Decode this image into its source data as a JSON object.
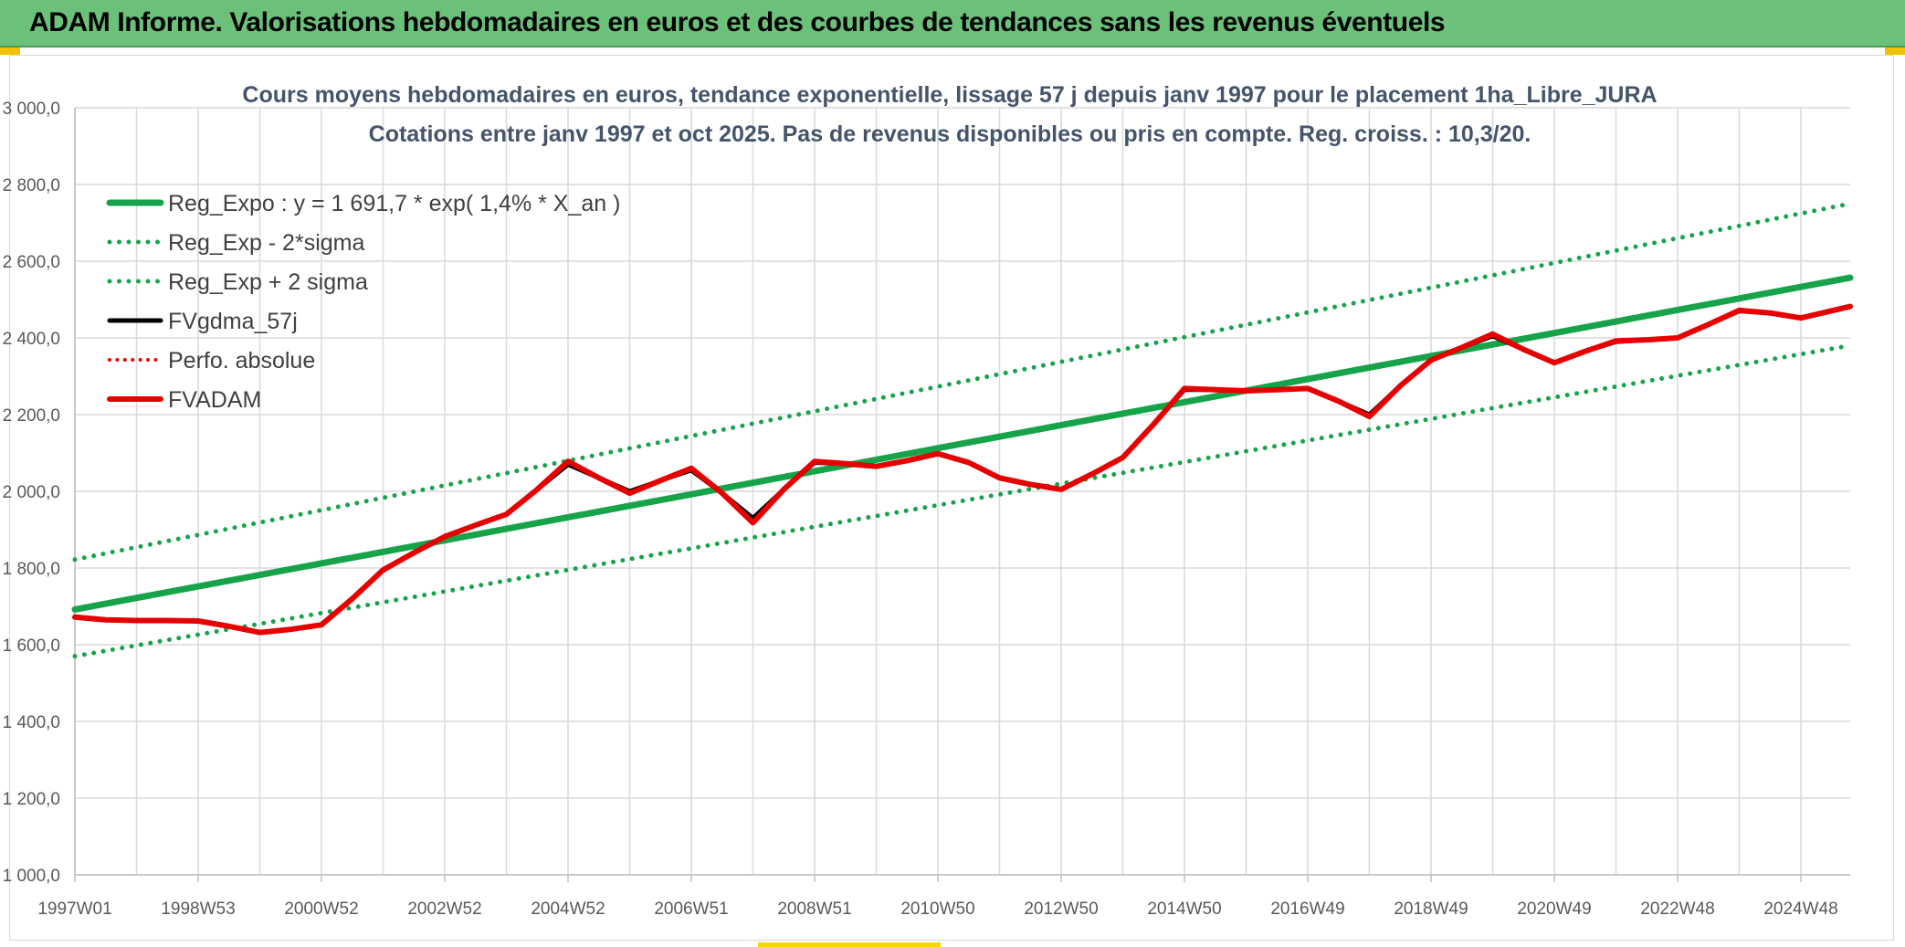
{
  "page": {
    "banner_title": "ADAM Informe. Valorisations hebdomadaires en euros et des courbes de tendances sans les revenus éventuels",
    "banner_color": "#6cc17a"
  },
  "chart_data": {
    "type": "line",
    "title": "Cours moyens hebdomadaires en euros, tendance exponentielle, lissage 57 j depuis janv 1997 pour le placement 1ha_Libre_JURA",
    "subtitle": "Cotations entre janv 1997 et oct 2025. Pas de revenus disponibles ou pris en compte. Reg. croiss. : 10,3/20.",
    "xlabel": "",
    "ylabel": "",
    "ylim": [
      1000,
      3000
    ],
    "yticks": [
      "1 000,0",
      "1 200,0",
      "1 400,0",
      "1 600,0",
      "1 800,0",
      "2 000,0",
      "2 200,0",
      "2 400,0",
      "2 600,0",
      "2 800,0",
      "3 000,0"
    ],
    "xlim": [
      1997.0,
      2025.8
    ],
    "xticks": [
      {
        "label": "1997W01",
        "x": 1997.0
      },
      {
        "label": "1998W53",
        "x": 1999.0
      },
      {
        "label": "2000W52",
        "x": 2001.0
      },
      {
        "label": "2002W52",
        "x": 2003.0
      },
      {
        "label": "2004W52",
        "x": 2005.0
      },
      {
        "label": "2006W51",
        "x": 2007.0
      },
      {
        "label": "2008W51",
        "x": 2009.0
      },
      {
        "label": "2010W50",
        "x": 2011.0
      },
      {
        "label": "2012W50",
        "x": 2013.0
      },
      {
        "label": "2014W50",
        "x": 2015.0
      },
      {
        "label": "2016W49",
        "x": 2017.0
      },
      {
        "label": "2018W49",
        "x": 2019.0
      },
      {
        "label": "2020W49",
        "x": 2021.0
      },
      {
        "label": "2022W48",
        "x": 2023.0
      },
      {
        "label": "2024W48",
        "x": 2025.0
      }
    ],
    "grid": true,
    "legend_position": "top-left",
    "series": [
      {
        "name": "Reg_Expo : y = 1 691,7 * exp( 1,4% *  X_an )",
        "color": "#17a34a",
        "style": "solid",
        "width": 7,
        "x": [
          1997.0,
          2025.8
        ],
        "values": [
          1692,
          2557
        ]
      },
      {
        "name": "Reg_Exp - 2*sigma",
        "color": "#17a34a",
        "style": "dotted",
        "width": 5,
        "x": [
          1997.0,
          2025.8
        ],
        "values": [
          1570,
          2380
        ]
      },
      {
        "name": "Reg_Exp + 2 sigma",
        "color": "#17a34a",
        "style": "dotted",
        "width": 5,
        "x": [
          1997.0,
          2025.8
        ],
        "values": [
          1822,
          2750
        ]
      },
      {
        "name": "FVgdma_57j",
        "color": "#000000",
        "style": "solid",
        "width": 5,
        "x": [
          1997.0,
          1997.5,
          1998.0,
          1998.5,
          1999.0,
          1999.5,
          2000.0,
          2000.5,
          2001.0,
          2001.5,
          2002.0,
          2002.5,
          2003.0,
          2003.5,
          2004.0,
          2004.5,
          2005.0,
          2005.5,
          2006.0,
          2006.5,
          2007.0,
          2007.5,
          2008.0,
          2008.5,
          2009.0,
          2009.5,
          2010.0,
          2010.5,
          2011.0,
          2011.5,
          2012.0,
          2012.5,
          2013.0,
          2013.5,
          2014.0,
          2014.5,
          2015.0,
          2015.5,
          2016.0,
          2016.5,
          2017.0,
          2017.5,
          2018.0,
          2018.5,
          2019.0,
          2019.5,
          2020.0,
          2020.5,
          2021.0,
          2021.5,
          2022.0,
          2022.5,
          2023.0,
          2023.5,
          2024.0,
          2024.5,
          2025.0,
          2025.8
        ],
        "values": [
          1672,
          1665,
          1663,
          1663,
          1662,
          1648,
          1632,
          1640,
          1652,
          1720,
          1795,
          1840,
          1882,
          1912,
          1940,
          2005,
          2070,
          2035,
          2000,
          2028,
          2055,
          1995,
          1930,
          2005,
          2075,
          2072,
          2065,
          2080,
          2098,
          2075,
          2035,
          2018,
          2005,
          2045,
          2088,
          2175,
          2265,
          2265,
          2262,
          2265,
          2268,
          2235,
          2200,
          2275,
          2342,
          2375,
          2405,
          2370,
          2335,
          2365,
          2390,
          2395,
          2400,
          2435,
          2470,
          2465,
          2452,
          2482
        ]
      },
      {
        "name": "Perfo. absolue",
        "color": "#e60000",
        "style": "dotted",
        "width": 4,
        "x": [],
        "values": []
      },
      {
        "name": "FVADAM",
        "color": "#e60000",
        "style": "solid",
        "width": 6,
        "x": [
          1997.0,
          1997.5,
          1998.0,
          1998.5,
          1999.0,
          1999.5,
          2000.0,
          2000.5,
          2001.0,
          2001.5,
          2002.0,
          2002.5,
          2003.0,
          2003.5,
          2004.0,
          2004.5,
          2005.0,
          2005.5,
          2006.0,
          2006.5,
          2007.0,
          2007.5,
          2008.0,
          2008.5,
          2009.0,
          2009.5,
          2010.0,
          2010.5,
          2011.0,
          2011.5,
          2012.0,
          2012.5,
          2013.0,
          2013.5,
          2014.0,
          2014.5,
          2015.0,
          2015.5,
          2016.0,
          2016.5,
          2017.0,
          2017.5,
          2018.0,
          2018.5,
          2019.0,
          2019.5,
          2020.0,
          2020.5,
          2021.0,
          2021.5,
          2022.0,
          2022.5,
          2023.0,
          2023.5,
          2024.0,
          2024.5,
          2025.0,
          2025.8
        ],
        "values": [
          1672,
          1665,
          1663,
          1663,
          1662,
          1648,
          1632,
          1640,
          1652,
          1720,
          1795,
          1840,
          1882,
          1912,
          1940,
          2005,
          2078,
          2035,
          1995,
          2028,
          2060,
          1995,
          1918,
          2005,
          2078,
          2072,
          2065,
          2080,
          2098,
          2075,
          2035,
          2018,
          2005,
          2045,
          2088,
          2175,
          2268,
          2265,
          2262,
          2265,
          2268,
          2235,
          2195,
          2275,
          2342,
          2375,
          2410,
          2370,
          2335,
          2365,
          2392,
          2395,
          2400,
          2435,
          2472,
          2465,
          2452,
          2482
        ]
      }
    ]
  }
}
